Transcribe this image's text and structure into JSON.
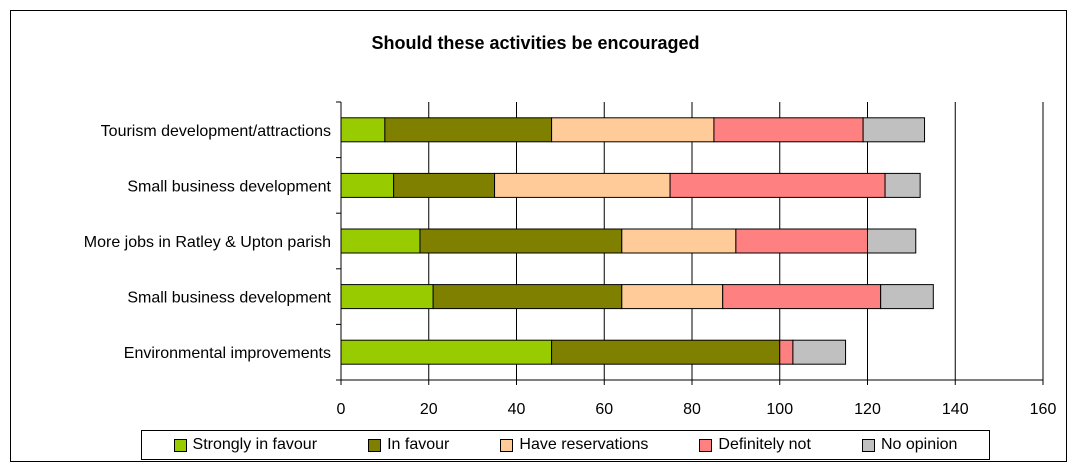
{
  "chart_data": {
    "type": "bar",
    "orientation": "horizontal",
    "stacked": true,
    "title": "Should these activities be encouraged",
    "xlabel": "",
    "ylabel": "",
    "categories": [
      "Tourism development/attractions",
      "Small business development",
      "More jobs in Ratley & Upton parish",
      "Small business development",
      "Environmental improvements"
    ],
    "series": [
      {
        "name": "Strongly in favour",
        "color": "#99cc00",
        "values": [
          10,
          12,
          18,
          21,
          48
        ]
      },
      {
        "name": "In favour",
        "color": "#808000",
        "values": [
          38,
          23,
          46,
          43,
          52
        ]
      },
      {
        "name": "Have reservations",
        "color": "#ffcc99",
        "values": [
          37,
          40,
          26,
          23,
          0
        ]
      },
      {
        "name": "Definitely not",
        "color": "#ff8080",
        "values": [
          34,
          49,
          30,
          36,
          3
        ]
      },
      {
        "name": "No opinion",
        "color": "#c0c0c0",
        "values": [
          14,
          8,
          11,
          12,
          12
        ]
      }
    ],
    "xlim": [
      0,
      160
    ],
    "xticks": [
      0,
      20,
      40,
      60,
      80,
      100,
      120,
      140,
      160
    ],
    "grid": true,
    "legend_position": "bottom"
  }
}
